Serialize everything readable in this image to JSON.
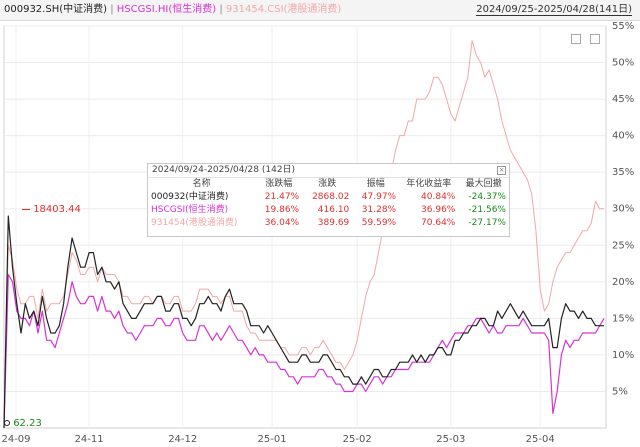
{
  "header": {
    "legend": [
      {
        "label": "000932.SH(中证消费)",
        "color": "#222222"
      },
      {
        "label": "HSCGSI.HI(恒生消费)",
        "color": "#d633d6"
      },
      {
        "label": "931454.CSI(港股通消费)",
        "color": "#f3a7a7"
      }
    ],
    "separator": "|",
    "date_range": "2024/09/25-2025/04/28(141日)"
  },
  "tooltip": {
    "title": "2024/09/24-2025/04/28 (142日)",
    "close_icon": "close-icon",
    "columns": [
      "名称",
      "涨跌幅",
      "涨跌",
      "振幅",
      "年化收益率",
      "最大回撤"
    ],
    "rows": [
      {
        "name": "000932(中证消费)",
        "chg_pct": "21.47%",
        "chg": "2868.02",
        "amp": "47.97%",
        "annual": "40.84%",
        "drawdown": "-24.37%",
        "name_color": "#222222"
      },
      {
        "name": "HSCGSI(恒生消费)",
        "chg_pct": "19.86%",
        "chg": "416.10",
        "amp": "31.28%",
        "annual": "36.96%",
        "drawdown": "-21.56%",
        "name_color": "#d633d6"
      },
      {
        "name": "931454(港股通消费)",
        "chg_pct": "36.04%",
        "chg": "389.69",
        "amp": "59.59%",
        "annual": "70.64%",
        "drawdown": "-27.17%",
        "name_color": "#f3a7a7"
      }
    ],
    "up_color": "#e03030",
    "down_color": "#1a8a1a"
  },
  "annotations": {
    "peak_label": "18403.44",
    "low_label": "62.23",
    "peak_color": "#e03030",
    "low_color": "#1a8a1a"
  },
  "chart_data": {
    "type": "line",
    "y_unit": "%",
    "ylim": [
      0,
      55
    ],
    "y_ticks": [
      "5%",
      "10%",
      "15%",
      "20%",
      "25%",
      "30%",
      "35%",
      "40%",
      "45%",
      "50%",
      "55%"
    ],
    "x_ticks": [
      "24-09",
      "24-11",
      "24-12",
      "25-01",
      "25-02",
      "25-03",
      "25-04"
    ],
    "series": [
      {
        "name": "000932.SH(中证消费)",
        "color": "#222222",
        "values": [
          0,
          29,
          22,
          17,
          13,
          17,
          15,
          16,
          14,
          18,
          15,
          13,
          13,
          14,
          17,
          22,
          26,
          24,
          22,
          22,
          24,
          24,
          21,
          22,
          20,
          20,
          19,
          20,
          17,
          16,
          15,
          15,
          16,
          17,
          17,
          17,
          18,
          18,
          16,
          16,
          17,
          17,
          15,
          15,
          14,
          15,
          17,
          17,
          18,
          17,
          17,
          16,
          18,
          19,
          17,
          17,
          17,
          16,
          14,
          14,
          14,
          13,
          14,
          13,
          12,
          11,
          10,
          9,
          9,
          9,
          10,
          10,
          9,
          9,
          9,
          10,
          10,
          9,
          8,
          8,
          7,
          7,
          6,
          6,
          7,
          6,
          7,
          8,
          8,
          7,
          7,
          8,
          8,
          9,
          9,
          9,
          10,
          9,
          10,
          9,
          10,
          10,
          11,
          11,
          10,
          10,
          12,
          12,
          13,
          13,
          14,
          14,
          15,
          15,
          14,
          14,
          16,
          15,
          16,
          17,
          16,
          15,
          16,
          15,
          14,
          14,
          14,
          14,
          15,
          11,
          11,
          15,
          17,
          16,
          16,
          15,
          16,
          15,
          15,
          14,
          14,
          14
        ]
      },
      {
        "name": "HSCGSI.HI(恒生消费)",
        "color": "#d633d6",
        "values": [
          0,
          21,
          20,
          16,
          15,
          15,
          14,
          16,
          13,
          16,
          12,
          12,
          11,
          13,
          15,
          17,
          20,
          18,
          17,
          17,
          18,
          18,
          16,
          18,
          16,
          16,
          15,
          16,
          14,
          13,
          13,
          12,
          13,
          14,
          14,
          14,
          15,
          15,
          14,
          14,
          15,
          15,
          13,
          12,
          12,
          12,
          14,
          14,
          13,
          12,
          13,
          12,
          13,
          14,
          13,
          12,
          12,
          11,
          10,
          11,
          10,
          10,
          9,
          9,
          9,
          8,
          8,
          7,
          7,
          6,
          7,
          7,
          7,
          7,
          8,
          8,
          7,
          7,
          6,
          6,
          5,
          5,
          5,
          6,
          6,
          5,
          6,
          7,
          7,
          6,
          7,
          7,
          8,
          8,
          8,
          8,
          9,
          9,
          9,
          9,
          9,
          10,
          11,
          12,
          11,
          12,
          13,
          13,
          13,
          14,
          14,
          15,
          15,
          14,
          13,
          14,
          13,
          13,
          14,
          14,
          14,
          14,
          15,
          14,
          13,
          13,
          13,
          13,
          12,
          2,
          5,
          10,
          12,
          11,
          12,
          12,
          13,
          13,
          13,
          13,
          14,
          15
        ]
      },
      {
        "name": "931454.CSI(港股通消费)",
        "color": "#f3a7a7",
        "values": [
          0,
          25,
          23,
          19,
          17,
          17,
          18,
          18,
          15,
          19,
          16,
          17,
          17,
          17,
          18,
          21,
          24,
          23,
          21,
          21,
          22,
          22,
          20,
          22,
          21,
          21,
          21,
          20,
          18,
          18,
          17,
          17,
          17,
          18,
          18,
          17,
          18,
          18,
          17,
          17,
          18,
          18,
          16,
          16,
          16,
          17,
          19,
          19,
          19,
          18,
          18,
          17,
          18,
          18,
          16,
          16,
          16,
          14,
          13,
          13,
          12,
          12,
          12,
          12,
          12,
          11,
          11,
          10,
          10,
          10,
          11,
          11,
          10,
          11,
          11,
          12,
          11,
          10,
          9,
          9,
          8,
          9,
          10,
          12,
          15,
          18,
          20,
          21,
          24,
          27,
          32,
          35,
          38,
          40,
          40,
          42,
          42,
          45,
          45,
          45,
          46,
          48,
          48,
          47,
          45,
          43,
          42,
          44,
          46,
          48,
          53,
          51,
          50,
          48,
          49,
          47,
          45,
          42,
          40,
          38,
          37,
          36,
          35,
          34,
          32,
          27,
          19,
          16,
          17,
          20,
          22,
          23,
          24,
          24,
          25,
          26,
          27,
          27,
          28,
          31,
          30,
          30
        ]
      }
    ]
  }
}
